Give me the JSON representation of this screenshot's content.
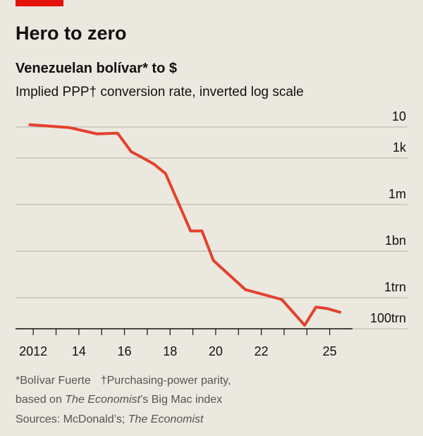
{
  "chart_data": {
    "type": "line",
    "title": "Hero to zero",
    "subtitle": "Venezuelan bolívar* to $",
    "description": "Implied PPP† conversion rate, inverted log scale",
    "notes": [
      [
        "*Bolívar Fuerte",
        "†Purchasing-power parity,"
      ],
      [
        "based on ",
        "The Economist",
        "’s Big Mac index"
      ],
      [
        "Sources: McDonald’s; ",
        "The Economist"
      ]
    ],
    "log_scale": true,
    "y_inverted": true,
    "grid": true,
    "xlim": [
      2011.5,
      2026
    ],
    "xticks": [
      2012,
      {
        "value": 2014,
        "label": "14"
      },
      {
        "value": 2016,
        "label": "16"
      },
      {
        "value": 2018,
        "label": "18"
      },
      {
        "value": 2020,
        "label": "20"
      },
      {
        "value": 2022,
        "label": "22"
      },
      {
        "value": 2025,
        "label": "25"
      }
    ],
    "xminor_ticks": [
      2013,
      2015,
      2017,
      2019,
      2021,
      2023,
      2024
    ],
    "ylim": [
      1,
      100000000000000
    ],
    "yticks": [
      10,
      {
        "value": 1000,
        "label": "1k"
      },
      {
        "value": 1000000,
        "label": "1m"
      },
      {
        "value": 1000000000,
        "label": "1bn"
      },
      {
        "value": 1000000000000,
        "label": "1trn"
      },
      {
        "value": 100000000000000,
        "label": "100trn"
      }
    ],
    "x": [
      2011.8,
      2013.6,
      2014.8,
      2015.7,
      2016.3,
      2016.7,
      2017.3,
      2017.8,
      2018.9,
      2019.4,
      2019.9,
      2021.3,
      2022.9,
      2023.9,
      2024.4,
      2024.9,
      2025.5
    ],
    "series": [
      {
        "color": "#e3412d",
        "values": [
          7,
          11,
          28,
          25,
          400,
          800,
          2500,
          10000,
          50000000,
          50000000,
          4000000000,
          300000000000,
          1300000000000,
          60000000000000,
          4000000000000,
          5000000000000,
          9000000000000
        ]
      }
    ]
  }
}
